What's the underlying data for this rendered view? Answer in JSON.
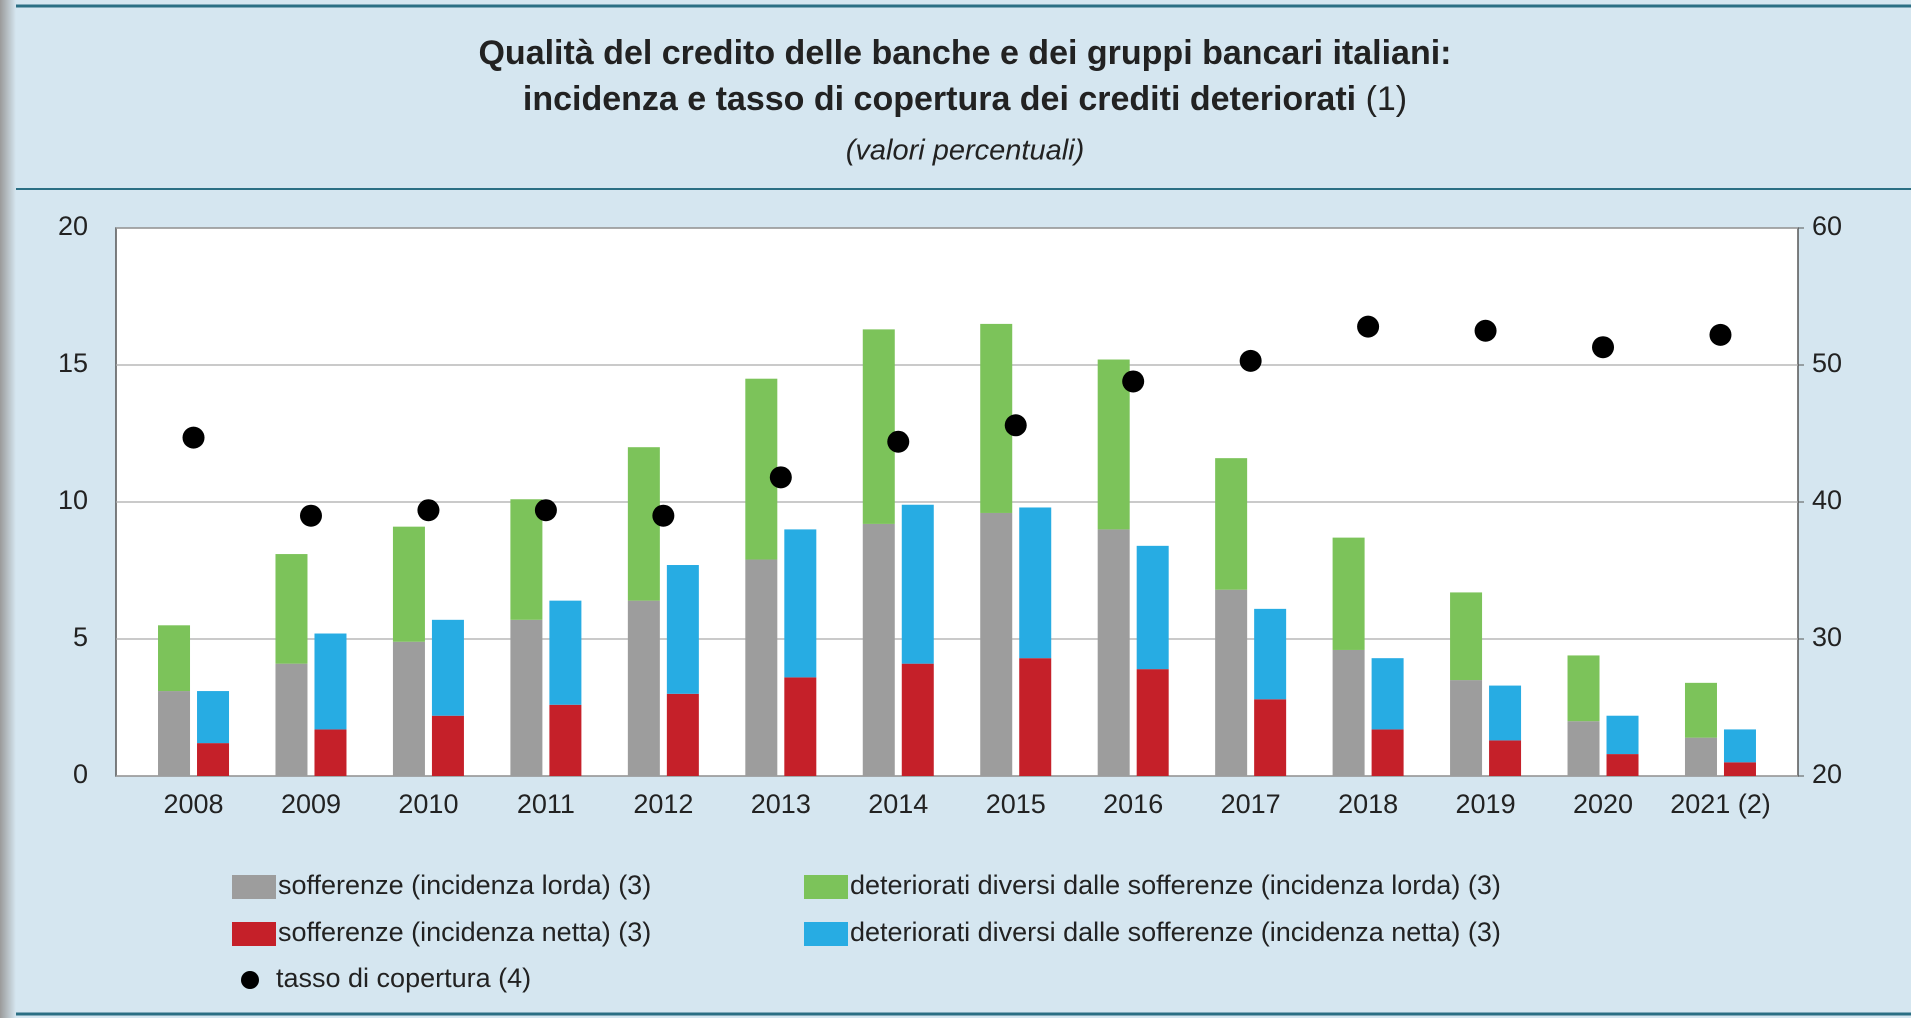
{
  "chart_data": {
    "type": "bar",
    "title": [
      "Qualità del credito delle banche e dei gruppi bancari italiani:",
      "incidenza e tasso di copertura dei crediti deteriorati"
    ],
    "title_note": "(1)",
    "subtitle": "(valori percentuali)",
    "categories": [
      "2008",
      "2009",
      "2010",
      "2011",
      "2012",
      "2013",
      "2014",
      "2015",
      "2016",
      "2017",
      "2018",
      "2019",
      "2020",
      "2021 (2)"
    ],
    "series": [
      {
        "name": "sofferenze (incidenza lorda) (3)",
        "color": "#9d9d9d",
        "stack": 0,
        "values": [
          3.1,
          4.1,
          4.9,
          5.7,
          6.4,
          7.9,
          9.2,
          9.6,
          9.0,
          6.8,
          4.6,
          3.5,
          2.0,
          1.4
        ]
      },
      {
        "name": "deteriorati diversi dalle sofferenze (incidenza lorda) (3)",
        "color": "#7cc35a",
        "stack": 0,
        "values": [
          2.4,
          4.0,
          4.2,
          4.4,
          5.6,
          6.6,
          7.1,
          6.9,
          6.2,
          4.8,
          4.1,
          3.2,
          2.4,
          2.0
        ]
      },
      {
        "name": "sofferenze (incidenza netta) (3)",
        "color": "#c52029",
        "stack": 1,
        "values": [
          1.2,
          1.7,
          2.2,
          2.6,
          3.0,
          3.6,
          4.1,
          4.3,
          3.9,
          2.8,
          1.7,
          1.3,
          0.8,
          0.5
        ]
      },
      {
        "name": "deteriorati diversi dalle sofferenze (incidenza netta) (3)",
        "color": "#27ace3",
        "stack": 1,
        "values": [
          1.9,
          3.5,
          3.5,
          3.8,
          4.7,
          5.4,
          5.8,
          5.5,
          4.5,
          3.3,
          2.6,
          2.0,
          1.4,
          1.2
        ]
      },
      {
        "name": "tasso di copertura (4)",
        "color": "#000000",
        "type": "scatter",
        "axis": "y2",
        "values": [
          44.7,
          39.0,
          39.4,
          39.4,
          39.0,
          41.8,
          44.4,
          45.6,
          48.8,
          50.3,
          52.8,
          52.5,
          51.3,
          52.2
        ]
      }
    ],
    "ylim": [
      0,
      20
    ],
    "yticks": [
      0,
      5,
      10,
      15,
      20
    ],
    "y2lim": [
      20,
      60
    ],
    "y2ticks": [
      20,
      30,
      40,
      50,
      60
    ],
    "grid": true
  }
}
